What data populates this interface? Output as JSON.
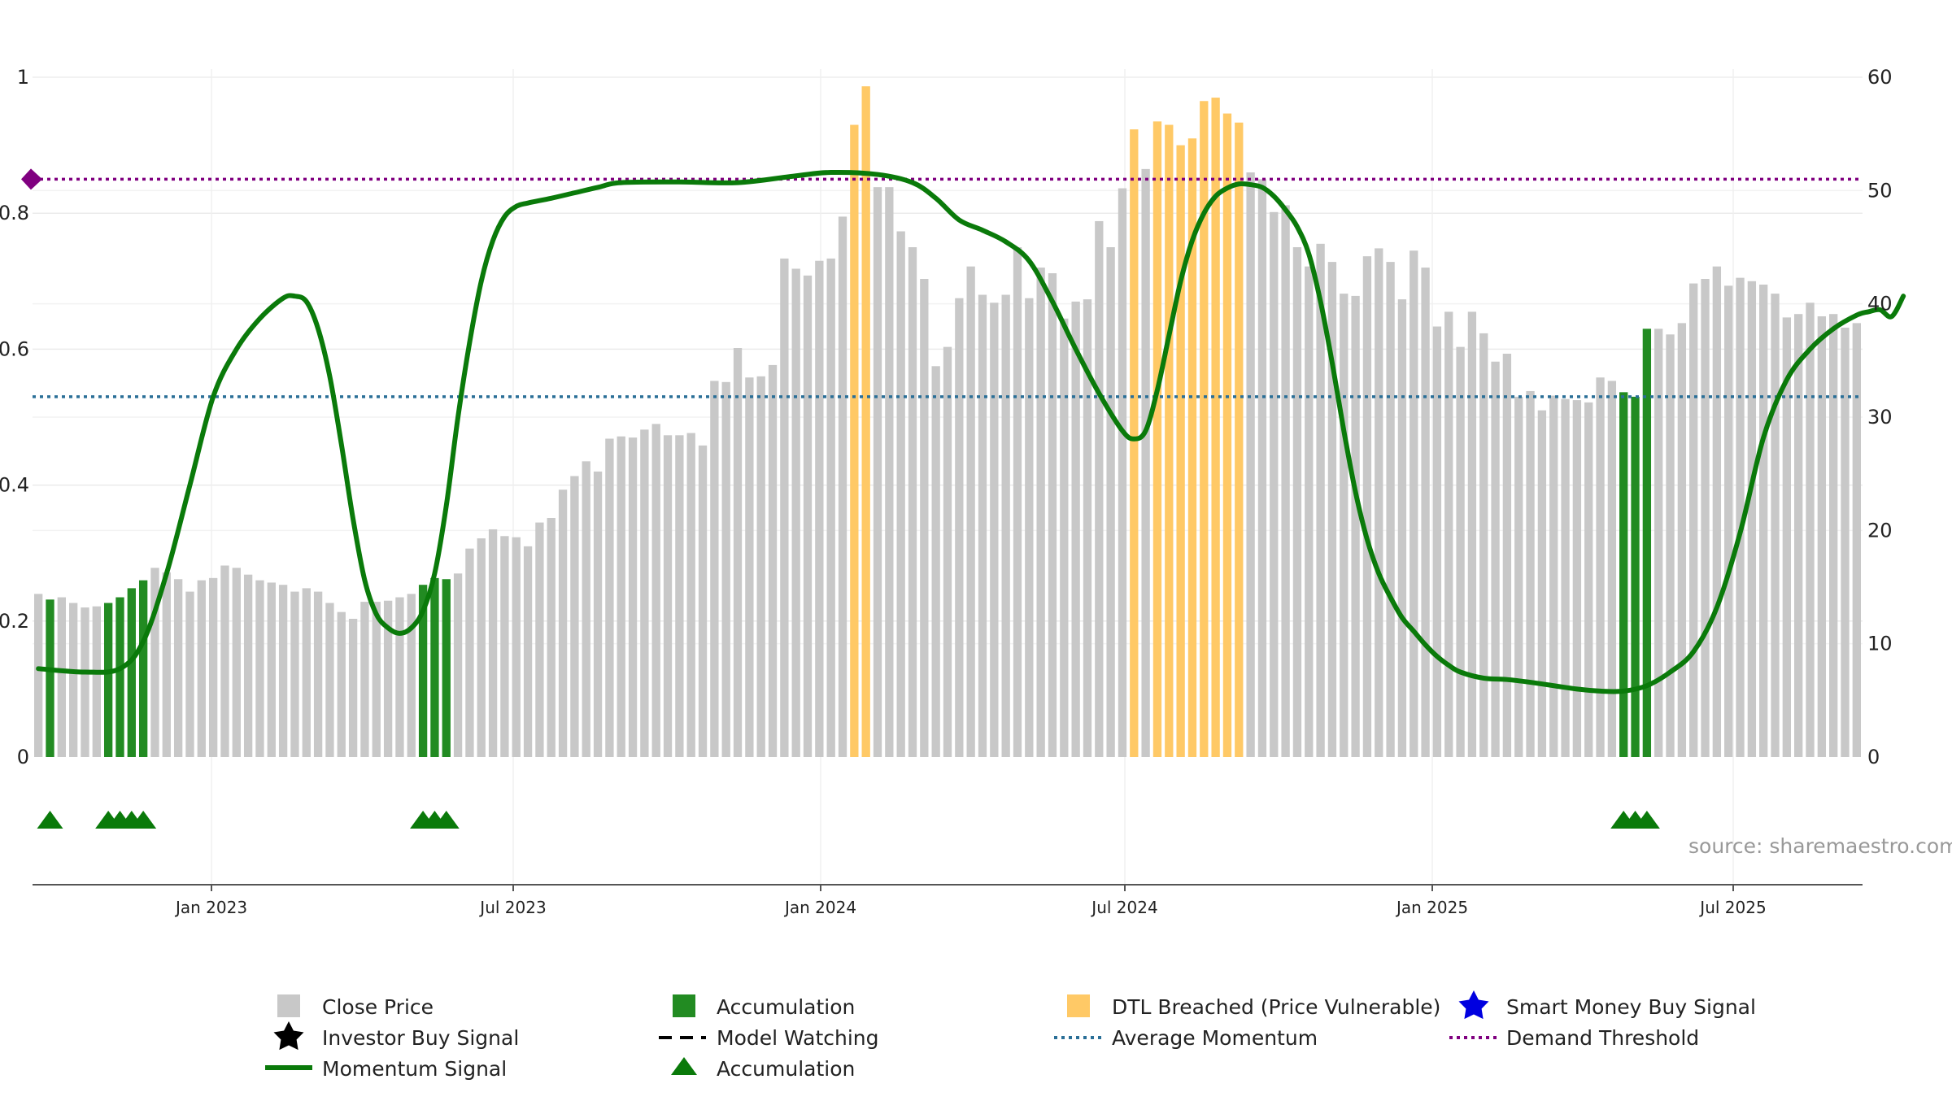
{
  "chart_data": {
    "type": "bar+line",
    "title": "",
    "source_label": "source: sharemaestro.com",
    "y_left": {
      "ticks": [
        "0",
        "0.2",
        "0.4",
        "0.6",
        "0.8",
        "1"
      ],
      "range": [
        0,
        1
      ]
    },
    "y_right": {
      "ticks": [
        "0",
        "10",
        "20",
        "30",
        "40",
        "50",
        "60"
      ],
      "range": [
        0,
        60
      ]
    },
    "x_ticks": [
      "Jan 2023",
      "Jul 2023",
      "Jan 2024",
      "Jul 2024",
      "Jan 2025",
      "Jul 2025"
    ],
    "average_momentum": 0.53,
    "demand_threshold": 0.85,
    "colors": {
      "close": "#c8c8c8",
      "accumulation": "#228b22",
      "dtl": "#ffc966",
      "momentum": "#0a7a0a",
      "average": "#2a6f97",
      "threshold": "#800080",
      "axis": "#555555",
      "grid": "#ebebeb"
    },
    "close_price_bar_values": [
      14.4,
      13.9,
      14.1,
      13.6,
      13.2,
      13.3,
      13.6,
      14.1,
      14.9,
      15.6,
      16.7,
      16.3,
      15.7,
      14.6,
      15.6,
      15.8,
      16.9,
      16.7,
      16.1,
      15.6,
      15.4,
      15.2,
      14.6,
      14.9,
      14.6,
      13.6,
      12.8,
      12.2,
      13.7,
      13.7,
      13.8,
      14.1,
      14.4,
      15.2,
      15.8,
      15.7,
      16.2,
      18.4,
      19.3,
      20.1,
      19.5,
      19.4,
      18.6,
      20.7,
      21.1,
      23.6,
      24.8,
      26.1,
      25.2,
      28.1,
      28.3,
      28.2,
      28.9,
      29.4,
      28.4,
      28.4,
      28.6,
      27.5,
      33.2,
      33.1,
      36.1,
      33.5,
      33.6,
      34.6,
      44.0,
      43.1,
      42.5,
      43.8,
      44.0,
      47.7,
      55.8,
      59.2,
      50.3,
      50.3,
      46.4,
      45.0,
      42.2,
      34.5,
      36.2,
      40.5,
      43.3,
      40.8,
      40.1,
      40.8,
      45.0,
      40.5,
      43.2,
      42.7,
      38.7,
      40.2,
      40.4,
      47.3,
      45.0,
      50.2,
      55.4,
      51.9,
      56.1,
      55.8,
      54.0,
      54.6,
      57.9,
      58.2,
      56.8,
      56.0,
      51.6,
      51.0,
      48.1,
      48.7,
      45.0,
      43.3,
      45.3,
      43.7,
      40.9,
      40.7,
      44.2,
      44.9,
      43.7,
      40.4,
      44.7,
      43.2,
      38.0,
      39.3,
      36.2,
      39.3,
      37.4,
      34.9,
      35.6,
      31.8,
      32.3,
      30.6,
      31.9,
      31.6,
      31.5,
      31.3,
      33.5,
      33.2,
      32.2,
      31.8,
      37.8,
      37.8,
      37.3,
      38.3,
      41.8,
      42.2,
      43.3,
      41.6,
      42.3,
      42.0,
      41.7,
      40.9,
      38.8,
      39.1,
      40.1,
      38.9,
      39.1,
      37.9,
      38.3
    ],
    "series": [
      {
        "name": "Close Price",
        "type": "bar",
        "axis": "right",
        "note": "gray bars; values listed in close_price_bar_values"
      },
      {
        "name": "Accumulation",
        "type": "bar",
        "axis": "right",
        "indices": [
          1,
          6,
          7,
          8,
          9,
          33,
          34,
          35,
          136,
          137,
          138
        ]
      },
      {
        "name": "DTL Breached (Price Vulnerable)",
        "type": "bar",
        "axis": "right",
        "indices": [
          70,
          71,
          94,
          96,
          97,
          98,
          99,
          100,
          101,
          102,
          103
        ]
      },
      {
        "name": "Momentum Signal",
        "type": "line",
        "axis": "left",
        "points": [
          [
            0,
            0.13
          ],
          [
            4,
            0.125
          ],
          [
            7,
            0.13
          ],
          [
            9,
            0.17
          ],
          [
            11,
            0.27
          ],
          [
            13,
            0.4
          ],
          [
            15,
            0.53
          ],
          [
            17,
            0.6
          ],
          [
            19,
            0.645
          ],
          [
            21,
            0.675
          ],
          [
            22,
            0.678
          ],
          [
            23,
            0.67
          ],
          [
            24,
            0.63
          ],
          [
            25,
            0.56
          ],
          [
            26,
            0.46
          ],
          [
            27,
            0.35
          ],
          [
            28,
            0.26
          ],
          [
            29,
            0.21
          ],
          [
            30,
            0.19
          ],
          [
            31,
            0.182
          ],
          [
            32,
            0.19
          ],
          [
            33,
            0.215
          ],
          [
            34,
            0.27
          ],
          [
            35,
            0.37
          ],
          [
            36,
            0.5
          ],
          [
            37,
            0.61
          ],
          [
            38,
            0.7
          ],
          [
            39,
            0.76
          ],
          [
            40,
            0.795
          ],
          [
            41,
            0.81
          ],
          [
            42,
            0.815
          ],
          [
            44,
            0.822
          ],
          [
            46,
            0.83
          ],
          [
            48,
            0.838
          ],
          [
            50,
            0.845
          ],
          [
            55,
            0.846
          ],
          [
            60,
            0.845
          ],
          [
            65,
            0.855
          ],
          [
            68,
            0.86
          ],
          [
            72,
            0.857
          ],
          [
            75,
            0.845
          ],
          [
            77,
            0.822
          ],
          [
            79,
            0.79
          ],
          [
            81,
            0.775
          ],
          [
            83,
            0.758
          ],
          [
            85,
            0.73
          ],
          [
            87,
            0.67
          ],
          [
            89,
            0.6
          ],
          [
            91,
            0.535
          ],
          [
            93,
            0.48
          ],
          [
            94,
            0.468
          ],
          [
            95,
            0.48
          ],
          [
            96,
            0.54
          ],
          [
            97,
            0.62
          ],
          [
            98,
            0.7
          ],
          [
            99,
            0.76
          ],
          [
            100,
            0.8
          ],
          [
            101,
            0.825
          ],
          [
            102,
            0.837
          ],
          [
            103,
            0.843
          ],
          [
            104,
            0.842
          ],
          [
            105,
            0.838
          ],
          [
            106,
            0.825
          ],
          [
            107,
            0.805
          ],
          [
            108,
            0.78
          ],
          [
            109,
            0.74
          ],
          [
            110,
            0.67
          ],
          [
            111,
            0.58
          ],
          [
            112,
            0.48
          ],
          [
            113,
            0.39
          ],
          [
            114,
            0.32
          ],
          [
            115,
            0.27
          ],
          [
            116,
            0.235
          ],
          [
            117,
            0.205
          ],
          [
            118,
            0.185
          ],
          [
            119,
            0.165
          ],
          [
            120,
            0.148
          ],
          [
            121,
            0.135
          ],
          [
            122,
            0.125
          ],
          [
            124,
            0.116
          ],
          [
            126,
            0.114
          ],
          [
            128,
            0.11
          ],
          [
            130,
            0.105
          ],
          [
            132,
            0.1
          ],
          [
            134,
            0.097
          ],
          [
            136,
            0.097
          ],
          [
            138,
            0.105
          ],
          [
            140,
            0.125
          ],
          [
            142,
            0.155
          ],
          [
            144,
            0.22
          ],
          [
            146,
            0.33
          ],
          [
            148,
            0.47
          ],
          [
            150,
            0.555
          ],
          [
            152,
            0.6
          ],
          [
            154,
            0.63
          ],
          [
            156,
            0.65
          ],
          [
            157,
            0.655
          ],
          [
            158,
            0.658
          ],
          [
            159,
            0.648
          ],
          [
            160,
            0.678
          ]
        ]
      }
    ],
    "accumulation_triangle_indices": [
      1,
      6,
      7,
      8,
      9,
      33,
      34,
      35,
      136,
      137,
      138
    ],
    "legend": [
      {
        "label": "Close Price",
        "symbol": "gray-square"
      },
      {
        "label": "Accumulation",
        "symbol": "green-square"
      },
      {
        "label": "DTL Breached (Price Vulnerable)",
        "symbol": "orange-square"
      },
      {
        "label": "Smart Money Buy Signal",
        "symbol": "blue-star"
      },
      {
        "label": "Investor Buy Signal",
        "symbol": "black-star"
      },
      {
        "label": "Model Watching",
        "symbol": "black-dashed-line"
      },
      {
        "label": "Average Momentum",
        "symbol": "blue-dotted-line"
      },
      {
        "label": "Demand Threshold",
        "symbol": "purple-dotted-line"
      },
      {
        "label": "Momentum Signal",
        "symbol": "green-line"
      },
      {
        "label": "Accumulation",
        "symbol": "green-triangle"
      }
    ]
  }
}
